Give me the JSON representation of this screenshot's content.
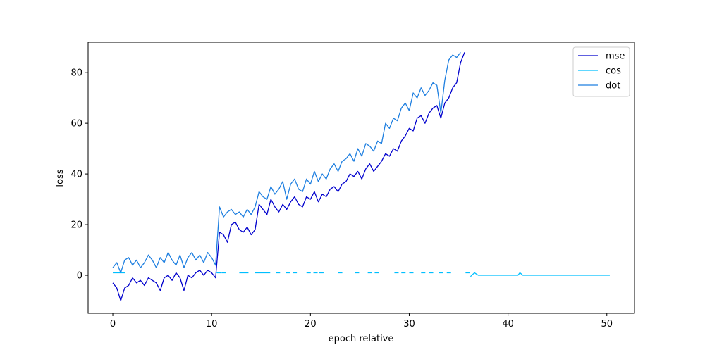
{
  "chart_data": {
    "type": "line",
    "title": "",
    "xlabel": "epoch relative",
    "ylabel": "loss",
    "xlim": [
      -2.5,
      52.8
    ],
    "ylim": [
      -15,
      92
    ],
    "x_ticks": [
      0,
      10,
      20,
      30,
      40,
      50
    ],
    "y_ticks": [
      0,
      20,
      40,
      60,
      80
    ],
    "grid": false,
    "legend_position": "top-right",
    "series": [
      {
        "name": "mse",
        "color": "#0000cd",
        "style": "solid",
        "x": [
          0.0,
          0.4,
          0.8,
          1.2,
          1.6,
          2.0,
          2.4,
          2.8,
          3.2,
          3.6,
          4.0,
          4.4,
          4.8,
          5.2,
          5.6,
          6.0,
          6.4,
          6.8,
          7.2,
          7.6,
          8.0,
          8.4,
          8.8,
          9.2,
          9.6,
          10.0,
          10.4,
          10.8,
          11.2,
          11.6,
          12.0,
          12.4,
          12.8,
          13.2,
          13.6,
          14.0,
          14.4,
          14.8,
          15.2,
          15.6,
          16.0,
          16.4,
          16.8,
          17.2,
          17.6,
          18.0,
          18.4,
          18.8,
          19.2,
          19.6,
          20.0,
          20.4,
          20.8,
          21.2,
          21.6,
          22.0,
          22.4,
          22.8,
          23.2,
          23.6,
          24.0,
          24.4,
          24.8,
          25.2,
          25.6,
          26.0,
          26.4,
          26.8,
          27.2,
          27.6,
          28.0,
          28.4,
          28.8,
          29.2,
          29.6,
          30.0,
          30.4,
          30.8,
          31.2,
          31.6,
          32.0,
          32.4,
          32.8,
          33.2,
          33.6,
          34.0,
          34.4,
          34.8,
          35.2,
          35.6
        ],
        "y": [
          -3,
          -5,
          -10,
          -5,
          -4,
          -1,
          -3,
          -2,
          -4,
          -1,
          -2,
          -3,
          -6,
          -1,
          0,
          -2,
          1,
          -1,
          -6,
          0,
          -1,
          1,
          2,
          0,
          2,
          1,
          -1,
          17,
          16,
          13,
          20,
          21,
          18,
          17,
          19,
          16,
          18,
          28,
          26,
          24,
          30,
          27,
          25,
          28,
          26,
          29,
          31,
          28,
          27,
          31,
          30,
          33,
          29,
          32,
          31,
          34,
          35,
          33,
          36,
          37,
          40,
          39,
          41,
          38,
          42,
          44,
          41,
          43,
          45,
          48,
          47,
          50,
          49,
          53,
          55,
          58,
          57,
          62,
          63,
          60,
          64,
          66,
          67,
          62,
          68,
          70,
          74,
          76,
          84,
          88
        ],
        "gaps": []
      },
      {
        "name": "cos",
        "color": "#00bfff",
        "style": "solid",
        "x": [
          0.0,
          0.8,
          10.5,
          11.0,
          12.8,
          13.3,
          14.4,
          15.5,
          16.5,
          17.5,
          18.2,
          19.6,
          20.3,
          20.9,
          22.8,
          24.5,
          25.8,
          26.5,
          28.5,
          29.2,
          30.0,
          31.2,
          32.0,
          33.0,
          33.8,
          35.7,
          36.2,
          36.6,
          37.0,
          38.0,
          39.0,
          40.0,
          41.0,
          41.2,
          41.5,
          42.0,
          44.0,
          46.0,
          48.0,
          50.3
        ],
        "y": [
          1,
          1,
          1,
          1,
          1,
          1,
          1,
          1,
          1,
          1,
          1,
          1,
          1,
          1,
          1,
          1,
          1,
          1,
          1,
          1,
          1,
          1,
          1,
          1,
          1,
          1,
          -0.5,
          1,
          0,
          0,
          0,
          0,
          0,
          1,
          0,
          0,
          0,
          0,
          0,
          0
        ],
        "gaps": [
          1,
          2,
          3,
          5,
          7,
          8,
          9,
          10,
          11,
          12,
          13,
          14,
          15,
          16,
          17,
          18,
          19,
          20,
          21,
          22,
          23,
          24,
          25
        ]
      },
      {
        "name": "dot",
        "color": "#1e7fe0",
        "style": "solid",
        "x": [
          0.0,
          0.4,
          0.8,
          1.2,
          1.6,
          2.0,
          2.4,
          2.8,
          3.2,
          3.6,
          4.0,
          4.4,
          4.8,
          5.2,
          5.6,
          6.0,
          6.4,
          6.8,
          7.2,
          7.6,
          8.0,
          8.4,
          8.8,
          9.2,
          9.6,
          10.0,
          10.4,
          10.8,
          11.2,
          11.6,
          12.0,
          12.4,
          12.8,
          13.2,
          13.6,
          14.0,
          14.4,
          14.8,
          15.2,
          15.6,
          16.0,
          16.4,
          16.8,
          17.2,
          17.6,
          18.0,
          18.4,
          18.8,
          19.2,
          19.6,
          20.0,
          20.4,
          20.8,
          21.2,
          21.6,
          22.0,
          22.4,
          22.8,
          23.2,
          23.6,
          24.0,
          24.4,
          24.8,
          25.2,
          25.6,
          26.0,
          26.4,
          26.8,
          27.2,
          27.6,
          28.0,
          28.4,
          28.8,
          29.2,
          29.6,
          30.0,
          30.4,
          30.8,
          31.2,
          31.6,
          32.0,
          32.4,
          32.8,
          33.2,
          33.6,
          34.0,
          34.4,
          34.8,
          35.2
        ],
        "y": [
          3,
          5,
          1,
          6,
          7,
          4,
          6,
          3,
          5,
          8,
          6,
          3,
          7,
          5,
          9,
          6,
          4,
          8,
          3,
          7,
          9,
          6,
          8,
          5,
          9,
          7,
          4,
          27,
          23,
          25,
          26,
          24,
          25,
          23,
          26,
          24,
          27,
          33,
          31,
          30,
          35,
          32,
          34,
          37,
          30,
          36,
          38,
          34,
          33,
          38,
          36,
          41,
          37,
          40,
          38,
          42,
          44,
          41,
          45,
          46,
          48,
          45,
          50,
          47,
          52,
          51,
          49,
          53,
          52,
          60,
          58,
          62,
          61,
          66,
          68,
          65,
          72,
          70,
          74,
          71,
          73,
          76,
          75,
          64,
          77,
          85,
          87,
          86,
          88
        ],
        "gaps": []
      }
    ]
  }
}
